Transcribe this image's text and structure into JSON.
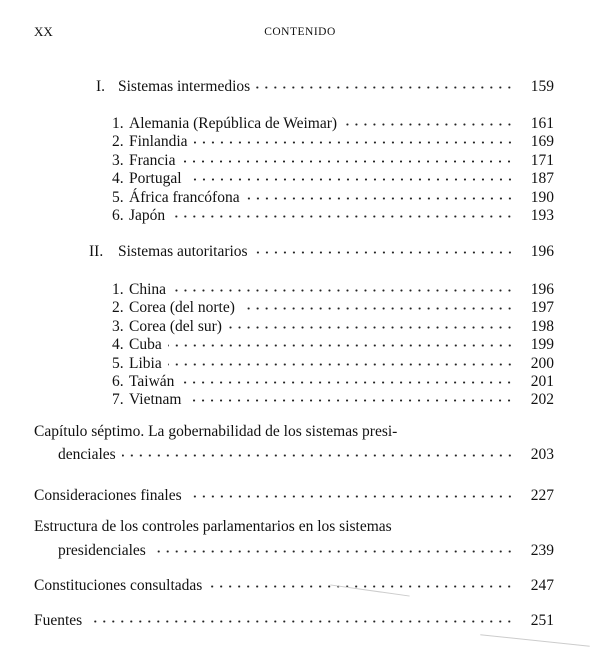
{
  "header": {
    "folio": "XX",
    "running_head": "CONTENIDO"
  },
  "sections": [
    {
      "number": "I.",
      "label": "Sistemas intermedios",
      "page": "159",
      "items": [
        {
          "number": "1.",
          "label": "Alemania (República de Weimar)",
          "page": "161"
        },
        {
          "number": "2.",
          "label": "Finlandia",
          "page": "169"
        },
        {
          "number": "3.",
          "label": "Francia",
          "page": "171"
        },
        {
          "number": "4.",
          "label": "Portugal",
          "page": "187"
        },
        {
          "number": "5.",
          "label": "África francófona",
          "page": "190"
        },
        {
          "number": "6.",
          "label": "Japón",
          "page": "193"
        }
      ]
    },
    {
      "number": "II.",
      "label": "Sistemas autoritarios",
      "page": "196",
      "items": [
        {
          "number": "1.",
          "label": "China",
          "page": "196"
        },
        {
          "number": "2.",
          "label": "Corea (del norte)",
          "page": "197"
        },
        {
          "number": "3.",
          "label": "Corea (del sur)",
          "page": "198"
        },
        {
          "number": "4.",
          "label": "Cuba",
          "page": "199"
        },
        {
          "number": "5.",
          "label": "Libia",
          "page": "200"
        },
        {
          "number": "6.",
          "label": "Taiwán",
          "page": "201"
        },
        {
          "number": "7.",
          "label": "Vietnam",
          "page": "202"
        }
      ]
    }
  ],
  "chapters": [
    {
      "line1": "Capítulo séptimo. La gobernabilidad de los sistemas presi-",
      "line2": "denciales",
      "page": "203"
    },
    {
      "label": "Consideraciones finales",
      "page": "227"
    },
    {
      "line1": "Estructura de los controles parlamentarios en los sistemas",
      "line2": "presidenciales",
      "page": "239"
    },
    {
      "label": "Constituciones consultadas",
      "page": "247"
    },
    {
      "label": "Fuentes",
      "page": "251"
    }
  ]
}
